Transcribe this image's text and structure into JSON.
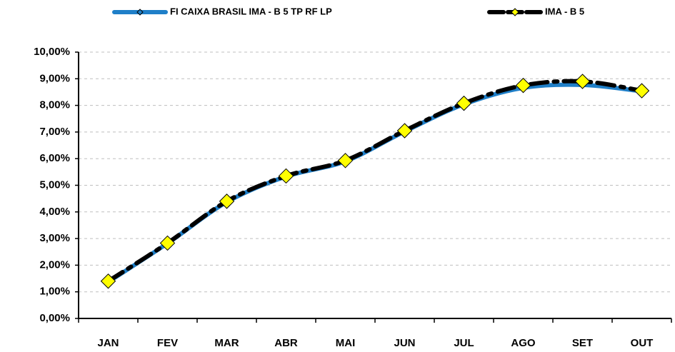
{
  "chart_data": {
    "type": "line",
    "categories": [
      "JAN",
      "FEV",
      "MAR",
      "ABR",
      "MAI",
      "JUN",
      "JUL",
      "AGO",
      "SET",
      "OUT"
    ],
    "series": [
      {
        "name": "FI CAIXA BRASIL IMA - B 5 TP RF LP",
        "color": "#1f7fc8",
        "values": [
          1.37,
          2.82,
          4.37,
          5.33,
          5.9,
          7.02,
          8.04,
          8.66,
          8.77,
          8.53
        ]
      },
      {
        "name": "IMA - B 5",
        "color": "#000000",
        "marker_color": "#ffff00",
        "values": [
          1.4,
          2.83,
          4.4,
          5.35,
          5.93,
          7.05,
          8.08,
          8.75,
          8.9,
          8.55
        ]
      }
    ],
    "ylim": [
      0,
      10
    ],
    "yticks": [
      {
        "value": 0,
        "label": "0,00%"
      },
      {
        "value": 1,
        "label": "1,00%"
      },
      {
        "value": 2,
        "label": "2,00%"
      },
      {
        "value": 3,
        "label": "3,00%"
      },
      {
        "value": 4,
        "label": "4,00%"
      },
      {
        "value": 5,
        "label": "5,00%"
      },
      {
        "value": 6,
        "label": "6,00%"
      },
      {
        "value": 7,
        "label": "7,00%"
      },
      {
        "value": 8,
        "label": "8,00%"
      },
      {
        "value": 9,
        "label": "9,00%"
      },
      {
        "value": 10,
        "label": "10,00%"
      }
    ],
    "grid": true,
    "legend": "top"
  }
}
